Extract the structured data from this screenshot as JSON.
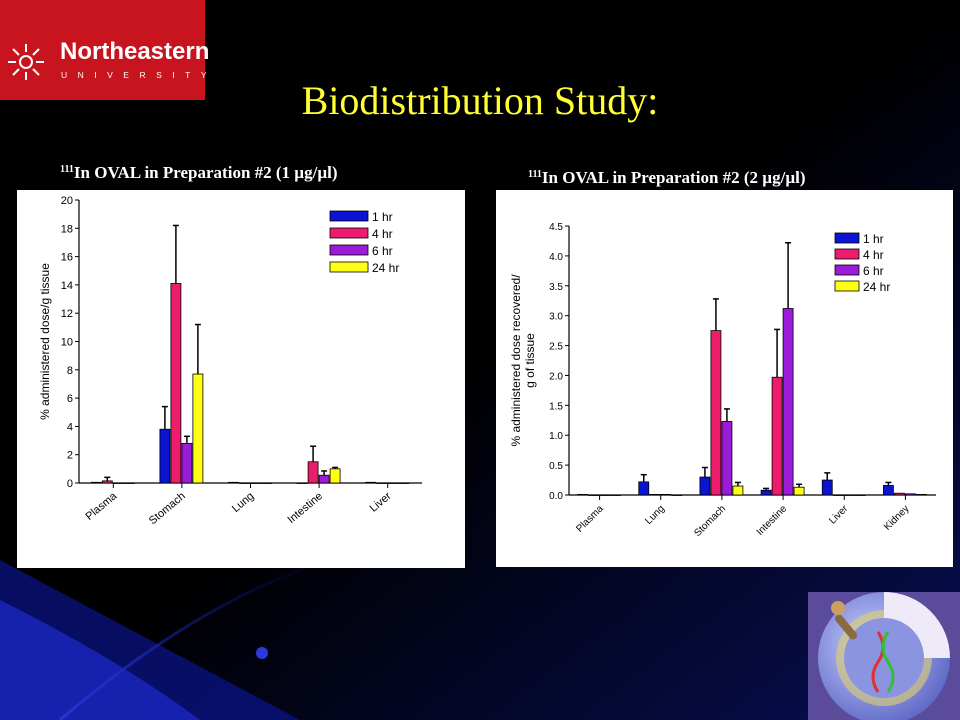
{
  "slide": {
    "logo": {
      "word": "Northeastern",
      "sub": "UNIVERSITY"
    },
    "title": "Biodistribution Study:",
    "left_subtitle": {
      "sup": "111",
      "text": "In OVAL in Preparation #2 (1 µg/µl)"
    },
    "right_subtitle": {
      "sup": "111",
      "text": "In OVAL in Preparation #2 (2 µg/µl)"
    }
  },
  "colors": {
    "background": "#000000",
    "logo_red": "#c8141e",
    "title_yellow": "#ffff33",
    "series": [
      "#0a14d2",
      "#ee1c6c",
      "#9b1cd8",
      "#ffff14"
    ]
  },
  "chart_data": [
    {
      "type": "bar",
      "ylabel": "% administered dose/g tissue",
      "ylim": [
        0,
        20
      ],
      "yticks": [
        "0",
        "2",
        "4",
        "6",
        "8",
        "10",
        "12",
        "14",
        "16",
        "18",
        "20"
      ],
      "categories": [
        "Plasma",
        "Stomach",
        "Lung",
        "Intestine",
        "Liver"
      ],
      "legend_position": "top-right",
      "series": [
        {
          "name": "1 hr",
          "values": [
            0.05,
            3.8,
            0.05,
            0,
            0.05
          ],
          "errors": [
            0,
            1.6,
            0,
            0,
            0
          ]
        },
        {
          "name": "4 hr",
          "values": [
            0.15,
            14.1,
            0,
            1.5,
            0
          ],
          "errors": [
            0.25,
            4.1,
            0,
            1.1,
            0
          ]
        },
        {
          "name": "6 hr",
          "values": [
            0,
            2.8,
            0,
            0.55,
            0
          ],
          "errors": [
            0,
            0.5,
            0,
            0.3,
            0
          ]
        },
        {
          "name": "24 hr",
          "values": [
            0,
            7.7,
            0,
            1.0,
            0
          ],
          "errors": [
            0,
            3.5,
            0,
            0.1,
            0
          ]
        }
      ]
    },
    {
      "type": "bar",
      "ylabel": "% administered dose recovered/ g of tissue",
      "ylim": [
        0,
        4.5
      ],
      "yticks": [
        "0.0",
        "0.5",
        "1.0",
        "1.5",
        "2.0",
        "2.5",
        "3.0",
        "3.5",
        "4.0",
        "4.5"
      ],
      "categories": [
        "Plasma",
        "Lung",
        "Stomach",
        "Intestine",
        "Liver",
        "Kidney"
      ],
      "legend_position": "top-right",
      "series": [
        {
          "name": "1 hr",
          "values": [
            0.01,
            0.22,
            0.3,
            0.08,
            0.25,
            0.16
          ],
          "errors": [
            0,
            0.12,
            0.16,
            0.03,
            0.12,
            0.05
          ]
        },
        {
          "name": "4 hr",
          "values": [
            0,
            0.01,
            2.75,
            1.97,
            0,
            0.03
          ],
          "errors": [
            0,
            0,
            0.53,
            0.8,
            0,
            0
          ]
        },
        {
          "name": "6 hr",
          "values": [
            0,
            0.01,
            1.23,
            3.12,
            0,
            0.02
          ],
          "errors": [
            0,
            0,
            0.21,
            1.1,
            0,
            0
          ]
        },
        {
          "name": "24 hr",
          "values": [
            0,
            0,
            0.15,
            0.13,
            0,
            0.01
          ],
          "errors": [
            0,
            0,
            0.06,
            0.05,
            0,
            0
          ]
        }
      ]
    }
  ]
}
